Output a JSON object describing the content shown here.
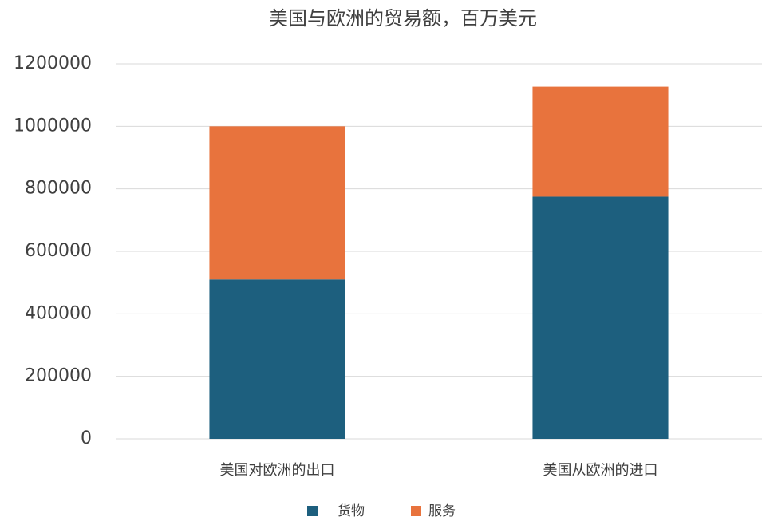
{
  "chart_data": {
    "type": "stacked_bar",
    "title": "美国与欧洲的贸易额，百万美元",
    "categories": [
      "美国对欧洲的出口",
      "美国从欧洲的进口"
    ],
    "series": [
      {
        "name": "货物",
        "color": "#1d5f7e",
        "values": [
          510000,
          775000
        ]
      },
      {
        "name": "服务",
        "color": "#e8733d",
        "values": [
          490000,
          352000
        ]
      }
    ],
    "ylim": [
      0,
      1200000
    ],
    "yticks": [
      0,
      200000,
      400000,
      600000,
      800000,
      1000000,
      1200000
    ],
    "grid": true,
    "legend": "bottom"
  }
}
